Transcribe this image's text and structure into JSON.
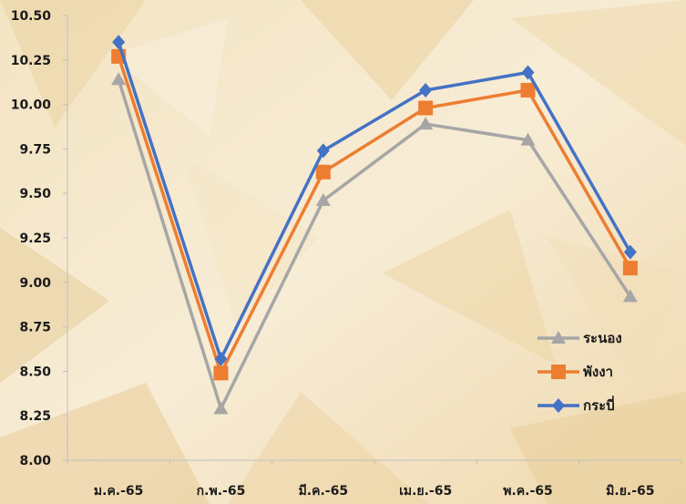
{
  "chart_data": {
    "type": "line",
    "title": "",
    "xlabel": "",
    "ylabel": "",
    "categories": [
      "ม.ค.-65",
      "ก.พ.-65",
      "มี.ค.-65",
      "เม.ย.-65",
      "พ.ค.-65",
      "มิ.ย.-65"
    ],
    "ylim": [
      8.0,
      10.5
    ],
    "yticks": [
      "8.00",
      "8.25",
      "8.50",
      "8.75",
      "9.00",
      "9.25",
      "9.50",
      "9.75",
      "10.00",
      "10.25",
      "10.50"
    ],
    "grid": false,
    "legend_position": "right",
    "series": [
      {
        "name": "ระนอง",
        "color": "#a6a6a6",
        "marker": "triangle",
        "values": [
          10.14,
          8.29,
          9.46,
          9.89,
          9.8,
          8.92
        ]
      },
      {
        "name": "พังงา",
        "color": "#ed7d31",
        "marker": "square",
        "values": [
          10.27,
          8.49,
          9.62,
          9.98,
          10.08,
          9.08
        ]
      },
      {
        "name": "กระบี่",
        "color": "#4472c4",
        "marker": "diamond",
        "values": [
          10.35,
          8.57,
          9.74,
          10.08,
          10.18,
          9.17
        ]
      }
    ]
  }
}
